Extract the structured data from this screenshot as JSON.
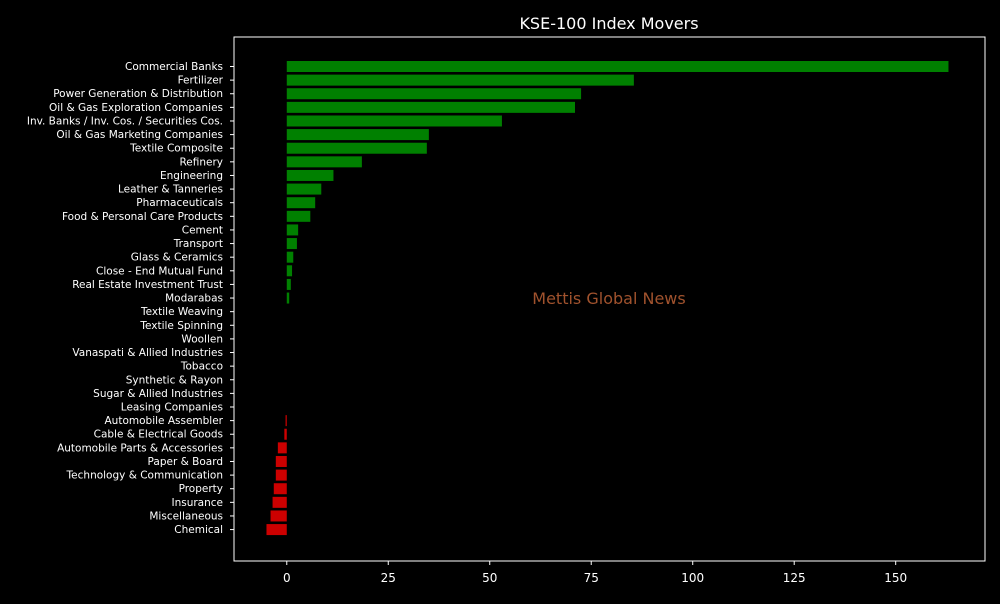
{
  "chart_data": {
    "type": "bar",
    "orientation": "horizontal",
    "title": "KSE-100 Index Movers",
    "xlabel": "",
    "ylabel": "",
    "xlim": [
      -13,
      172
    ],
    "xticks": [
      0,
      25,
      50,
      75,
      100,
      125,
      150
    ],
    "grid": false,
    "watermark": "Mettis Global News",
    "colors": {
      "background": "#000000",
      "text": "#ffffff",
      "axes": "#ffffff",
      "positive": "#008000",
      "negative": "#cc0000",
      "watermark": "#a0522d"
    },
    "categories": [
      "Commercial Banks",
      "Fertilizer",
      "Power Generation & Distribution",
      "Oil & Gas Exploration Companies",
      "Inv. Banks / Inv. Cos. / Securities Cos.",
      "Oil & Gas Marketing Companies",
      "Textile Composite",
      "Refinery",
      "Engineering",
      "Leather & Tanneries",
      "Pharmaceuticals",
      "Food & Personal Care Products",
      "Cement",
      "Transport",
      "Glass & Ceramics",
      "Close - End Mutual Fund",
      "Real Estate Investment Trust",
      "Modarabas",
      "Textile Weaving",
      "Textile Spinning",
      "Woollen",
      "Vanaspati & Allied Industries",
      "Tobacco",
      "Synthetic & Rayon",
      "Sugar & Allied Industries",
      "Leasing Companies",
      "Automobile Assembler",
      "Cable & Electrical Goods",
      "Automobile Parts & Accessories",
      "Paper & Board",
      "Technology & Communication",
      "Property",
      "Insurance",
      "Miscellaneous",
      "Chemical"
    ],
    "values": [
      163.0,
      85.5,
      72.5,
      71.0,
      53.0,
      35.0,
      34.5,
      18.5,
      11.5,
      8.5,
      7.0,
      5.8,
      2.8,
      2.5,
      1.6,
      1.3,
      1.0,
      0.6,
      0,
      0,
      0,
      0,
      0,
      0,
      0,
      0,
      -0.3,
      -0.6,
      -2.2,
      -2.7,
      -2.7,
      -3.2,
      -3.5,
      -4.0,
      -5.0
    ]
  }
}
